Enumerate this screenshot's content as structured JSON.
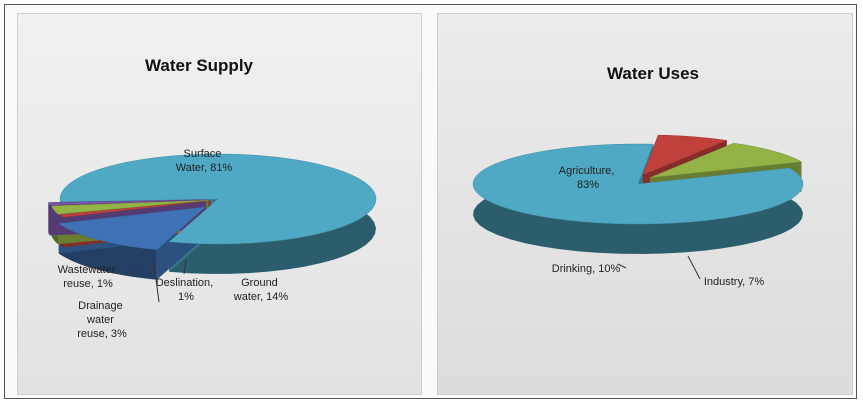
{
  "chart_data": [
    {
      "type": "pie",
      "title": "Water Supply",
      "slices": [
        {
          "name": "Surface Water",
          "value": 81,
          "label_lines": [
            "Surface",
            "Water, 81%"
          ],
          "color": "#4fa9c4"
        },
        {
          "name": "Ground water",
          "value": 14,
          "label_lines": [
            "Ground",
            "water, 14%"
          ],
          "color": "#3f72b5"
        },
        {
          "name": "Deslination",
          "value": 1,
          "label_lines": [
            "Deslination,",
            "1%"
          ],
          "color": "#c0403c"
        },
        {
          "name": "Drainage water reuse",
          "value": 3,
          "label_lines": [
            "Drainage",
            "water",
            "reuse, 3%"
          ],
          "color": "#93b347"
        },
        {
          "name": "Wastewater reuse",
          "value": 1,
          "label_lines": [
            "Wastewater",
            "reuse, 1%"
          ],
          "color": "#7a55a6"
        }
      ]
    },
    {
      "type": "pie",
      "title": "Water Uses",
      "slices": [
        {
          "name": "Agriculture",
          "value": 83,
          "label_lines": [
            "Agriculture,",
            "83%"
          ],
          "color": "#4fa9c4"
        },
        {
          "name": "Industry",
          "value": 7,
          "label_lines": [
            "Industry, 7%"
          ],
          "color": "#c0403c"
        },
        {
          "name": "Drinking",
          "value": 10,
          "label_lines": [
            "Drinking, 10%"
          ],
          "color": "#93b347"
        }
      ]
    }
  ]
}
